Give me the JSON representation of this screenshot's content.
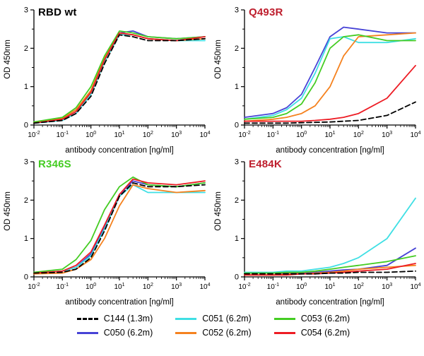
{
  "chart_data": [
    {
      "type": "line",
      "title": "RBD wt",
      "title_color": "#000000",
      "xlabel": "antibody concentration [ng/ml]",
      "ylabel": "OD 450nm",
      "x_scale": "log10",
      "xlim": [
        0.01,
        10000
      ],
      "ylim": [
        0,
        3
      ],
      "x": [
        0.01,
        0.1,
        0.3,
        1,
        3,
        10,
        30,
        100,
        1000,
        10000
      ],
      "series": [
        {
          "name": "C144 (1.3m)",
          "values": [
            0.05,
            0.12,
            0.3,
            0.75,
            1.6,
            2.35,
            2.3,
            2.2,
            2.2,
            2.25
          ]
        },
        {
          "name": "C050 (6.2m)",
          "values": [
            0.05,
            0.15,
            0.35,
            0.85,
            1.7,
            2.4,
            2.45,
            2.3,
            2.25,
            2.3
          ]
        },
        {
          "name": "C051 (6.2m)",
          "values": [
            0.05,
            0.12,
            0.3,
            0.8,
            1.65,
            2.35,
            2.35,
            2.25,
            2.2,
            2.2
          ]
        },
        {
          "name": "C052 (6.2m)",
          "values": [
            0.06,
            0.18,
            0.4,
            0.9,
            1.75,
            2.4,
            2.35,
            2.25,
            2.2,
            2.25
          ]
        },
        {
          "name": "C053 (6.2m)",
          "values": [
            0.08,
            0.2,
            0.45,
            1.0,
            1.8,
            2.45,
            2.4,
            2.3,
            2.25,
            2.3
          ]
        },
        {
          "name": "C054 (6.2m)",
          "values": [
            0.05,
            0.15,
            0.35,
            0.85,
            1.7,
            2.4,
            2.35,
            2.25,
            2.2,
            2.3
          ]
        }
      ]
    },
    {
      "type": "line",
      "title": "Q493R",
      "title_color": "#be1e2d",
      "xlabel": "antibody concentration [ng/ml]",
      "ylabel": "OD 450nm",
      "x_scale": "log10",
      "xlim": [
        0.01,
        10000
      ],
      "ylim": [
        0,
        3
      ],
      "x": [
        0.01,
        0.1,
        0.3,
        1,
        3,
        10,
        30,
        100,
        1000,
        10000
      ],
      "series": [
        {
          "name": "C144 (1.3m)",
          "values": [
            0.05,
            0.05,
            0.05,
            0.06,
            0.07,
            0.08,
            0.1,
            0.12,
            0.25,
            0.6
          ]
        },
        {
          "name": "C050 (6.2m)",
          "values": [
            0.2,
            0.3,
            0.45,
            0.8,
            1.5,
            2.3,
            2.55,
            2.5,
            2.4,
            2.4
          ]
        },
        {
          "name": "C051 (6.2m)",
          "values": [
            0.15,
            0.25,
            0.4,
            0.7,
            1.35,
            2.25,
            2.3,
            2.15,
            2.15,
            2.25
          ]
        },
        {
          "name": "C052 (6.2m)",
          "values": [
            0.1,
            0.15,
            0.2,
            0.3,
            0.5,
            1.0,
            1.8,
            2.3,
            2.35,
            2.4
          ]
        },
        {
          "name": "C053 (6.2m)",
          "values": [
            0.15,
            0.2,
            0.3,
            0.55,
            1.1,
            2.0,
            2.3,
            2.35,
            2.2,
            2.2
          ]
        },
        {
          "name": "C054 (6.2m)",
          "values": [
            0.1,
            0.1,
            0.1,
            0.1,
            0.12,
            0.15,
            0.2,
            0.3,
            0.7,
            1.55
          ]
        }
      ]
    },
    {
      "type": "line",
      "title": "R346S",
      "title_color": "#44cc22",
      "xlabel": "antibody concentration [ng/ml]",
      "ylabel": "OD 450nm",
      "x_scale": "log10",
      "xlim": [
        0.01,
        10000
      ],
      "ylim": [
        0,
        3
      ],
      "x": [
        0.01,
        0.1,
        0.3,
        1,
        3,
        10,
        30,
        100,
        1000,
        10000
      ],
      "series": [
        {
          "name": "C144 (1.3m)",
          "values": [
            0.1,
            0.12,
            0.2,
            0.5,
            1.2,
            2.1,
            2.45,
            2.35,
            2.35,
            2.4
          ]
        },
        {
          "name": "C050 (6.2m)",
          "values": [
            0.1,
            0.15,
            0.25,
            0.6,
            1.3,
            2.15,
            2.5,
            2.4,
            2.35,
            2.45
          ]
        },
        {
          "name": "C051 (6.2m)",
          "values": [
            0.1,
            0.15,
            0.25,
            0.55,
            1.25,
            2.1,
            2.4,
            2.2,
            2.2,
            2.2
          ]
        },
        {
          "name": "C052 (6.2m)",
          "values": [
            0.08,
            0.1,
            0.2,
            0.45,
            1.0,
            1.85,
            2.4,
            2.3,
            2.2,
            2.25
          ]
        },
        {
          "name": "C053 (6.2m)",
          "values": [
            0.12,
            0.2,
            0.45,
            0.95,
            1.75,
            2.35,
            2.6,
            2.4,
            2.35,
            2.45
          ]
        },
        {
          "name": "C054 (6.2m)",
          "values": [
            0.1,
            0.15,
            0.3,
            0.65,
            1.35,
            2.15,
            2.55,
            2.45,
            2.4,
            2.5
          ]
        }
      ]
    },
    {
      "type": "line",
      "title": "E484K",
      "title_color": "#be1e2d",
      "xlabel": "antibody concentration [ng/ml]",
      "ylabel": "OD 450nm",
      "x_scale": "log10",
      "xlim": [
        0.01,
        10000
      ],
      "ylim": [
        0,
        3
      ],
      "x": [
        0.01,
        0.1,
        0.3,
        1,
        3,
        10,
        30,
        100,
        1000,
        10000
      ],
      "series": [
        {
          "name": "C144 (1.3m)",
          "values": [
            0.08,
            0.08,
            0.08,
            0.08,
            0.08,
            0.1,
            0.1,
            0.12,
            0.12,
            0.15
          ]
        },
        {
          "name": "C050 (6.2m)",
          "values": [
            0.1,
            0.1,
            0.1,
            0.1,
            0.12,
            0.15,
            0.18,
            0.2,
            0.3,
            0.75
          ]
        },
        {
          "name": "C051 (6.2m)",
          "values": [
            0.12,
            0.12,
            0.15,
            0.15,
            0.2,
            0.25,
            0.35,
            0.5,
            1.0,
            2.05
          ]
        },
        {
          "name": "C052 (6.2m)",
          "values": [
            0.05,
            0.05,
            0.08,
            0.08,
            0.1,
            0.12,
            0.15,
            0.2,
            0.25,
            0.3
          ]
        },
        {
          "name": "C053 (6.2m)",
          "values": [
            0.1,
            0.1,
            0.12,
            0.12,
            0.15,
            0.2,
            0.25,
            0.3,
            0.4,
            0.55
          ]
        },
        {
          "name": "C054 (6.2m)",
          "values": [
            0.05,
            0.05,
            0.05,
            0.08,
            0.08,
            0.1,
            0.12,
            0.15,
            0.2,
            0.35
          ]
        }
      ]
    }
  ],
  "legend": {
    "items": [
      {
        "label": "C144 (1.3m)",
        "color": "#000000",
        "dash": true
      },
      {
        "label": "C050 (6.2m)",
        "color": "#4743d6",
        "dash": false
      },
      {
        "label": "C051 (6.2m)",
        "color": "#3fdfe4",
        "dash": false
      },
      {
        "label": "C052 (6.2m)",
        "color": "#f5821f",
        "dash": false
      },
      {
        "label": "C053 (6.2m)",
        "color": "#44cc22",
        "dash": false
      },
      {
        "label": "C054 (6.2m)",
        "color": "#ed1c24",
        "dash": false
      }
    ]
  }
}
